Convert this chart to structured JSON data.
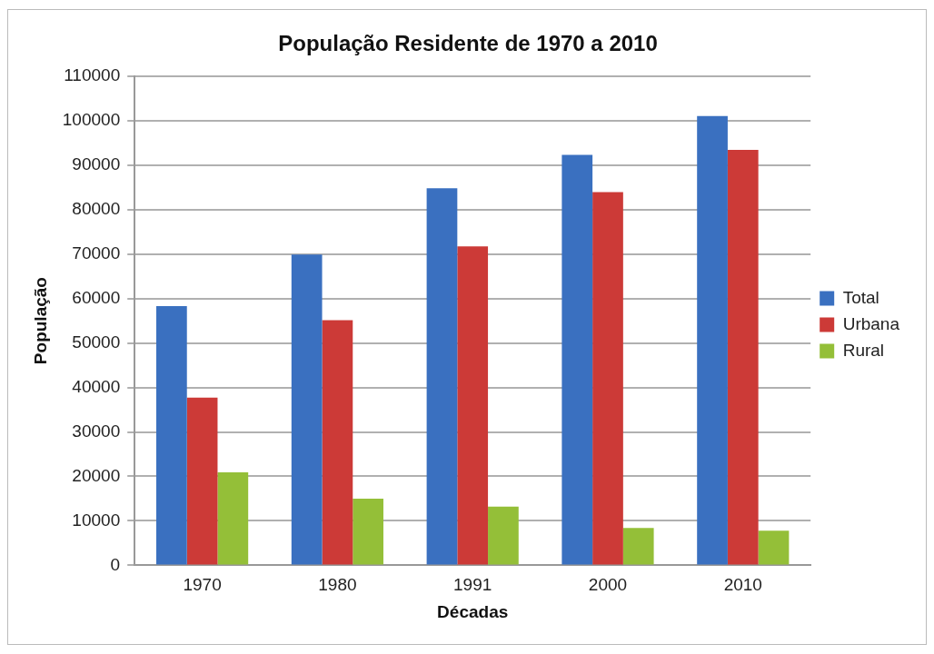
{
  "chart_data": {
    "type": "bar",
    "title": "População Residente de 1970 a 2010",
    "xlabel": "Décadas",
    "ylabel": "População",
    "categories": [
      "1970",
      "1980",
      "1991",
      "2000",
      "2010"
    ],
    "series": [
      {
        "name": "Total",
        "color": "#3a70c0",
        "values": [
          58300,
          69900,
          84800,
          92300,
          101000
        ]
      },
      {
        "name": "Urbana",
        "color": "#cc3a37",
        "values": [
          37700,
          55100,
          71700,
          83900,
          93400
        ]
      },
      {
        "name": "Rural",
        "color": "#94bf38",
        "values": [
          20900,
          15000,
          13200,
          8400,
          7800
        ]
      }
    ],
    "ylim": [
      0,
      110000
    ],
    "yticks": [
      0,
      10000,
      20000,
      30000,
      40000,
      50000,
      60000,
      70000,
      80000,
      90000,
      100000,
      110000
    ],
    "grid": "y",
    "legend": "right"
  }
}
